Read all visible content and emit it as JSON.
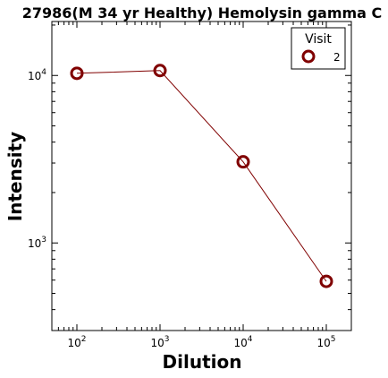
{
  "chart_data": {
    "type": "line",
    "title": "27986(M 34 yr Healthy) Hemolysin gamma C",
    "xlabel": "Dilution",
    "ylabel": "Intensity",
    "x_scale": "log",
    "y_scale": "log",
    "xlim": [
      50,
      200000
    ],
    "ylim": [
      300,
      21000
    ],
    "x_ticks": [
      {
        "value": 100,
        "base": "10",
        "exp": "2"
      },
      {
        "value": 1000,
        "base": "10",
        "exp": "3"
      },
      {
        "value": 10000,
        "base": "10",
        "exp": "4"
      },
      {
        "value": 100000,
        "base": "10",
        "exp": "5"
      }
    ],
    "y_ticks": [
      {
        "value": 1000,
        "base": "10",
        "exp": "3"
      },
      {
        "value": 10000,
        "base": "10",
        "exp": "4"
      }
    ],
    "legend": {
      "title": "Visit",
      "position": "top-right"
    },
    "series": [
      {
        "name": "2",
        "color": "#800000",
        "x": [
          100,
          1000,
          10000,
          100000
        ],
        "y": [
          10300,
          10700,
          3050,
          590
        ]
      }
    ]
  }
}
